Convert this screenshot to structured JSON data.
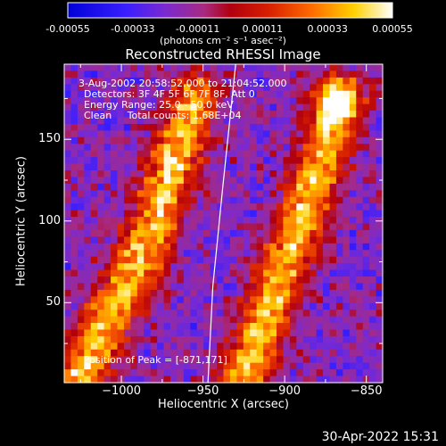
{
  "chart_data": {
    "type": "heatmap",
    "title": "Reconstructed RHESSI Image",
    "xlabel": "Heliocentric X (arcsec)",
    "ylabel": "Heliocentric Y (arcsec)",
    "xlim": [
      -1035,
      -840
    ],
    "ylim": [
      1,
      196
    ],
    "x_ticks": [
      -1000,
      -950,
      -900,
      -850
    ],
    "y_ticks": [
      50,
      100,
      150
    ],
    "colorbar": {
      "range": [
        -0.00055,
        0.00055
      ],
      "tick_values": [
        -0.00055,
        -0.00033,
        -0.00011,
        0.00011,
        0.00033,
        0.00055
      ],
      "tick_labels": [
        "-0.00055",
        "-0.00033",
        "-0.00011",
        "0.00011",
        "0.00033",
        "0.00055"
      ],
      "units": "(photons cm⁻² s⁻¹ asec⁻²)"
    },
    "annotations": {
      "time_range": "3-Aug-2002 20:58:52.000 to 21:04:52.000",
      "detectors": "Detectors: 3F 4F 5F 6F 7F 8F, Att 0",
      "energy_range": "Energy Range: 25.0 - 50.0 keV",
      "clean_counts": "Clean     Total counts: 1.68E+04",
      "peak": "Position of Peak = [-871,171]"
    },
    "features": [
      {
        "label": "emission-band-left",
        "path_xy": [
          [
            -1025,
            5
          ],
          [
            -985,
            85
          ],
          [
            -955,
            175
          ]
        ]
      },
      {
        "label": "emission-band-right",
        "path_xy": [
          [
            -925,
            5
          ],
          [
            -895,
            85
          ],
          [
            -865,
            175
          ]
        ]
      }
    ],
    "peak_position": [
      -871,
      171
    ],
    "limb_curve": [
      [
        -947,
        1
      ],
      [
        -944,
        60
      ],
      [
        -938,
        120
      ],
      [
        -930,
        196
      ]
    ]
  },
  "footer_date": "30-Apr-2022 15:31"
}
